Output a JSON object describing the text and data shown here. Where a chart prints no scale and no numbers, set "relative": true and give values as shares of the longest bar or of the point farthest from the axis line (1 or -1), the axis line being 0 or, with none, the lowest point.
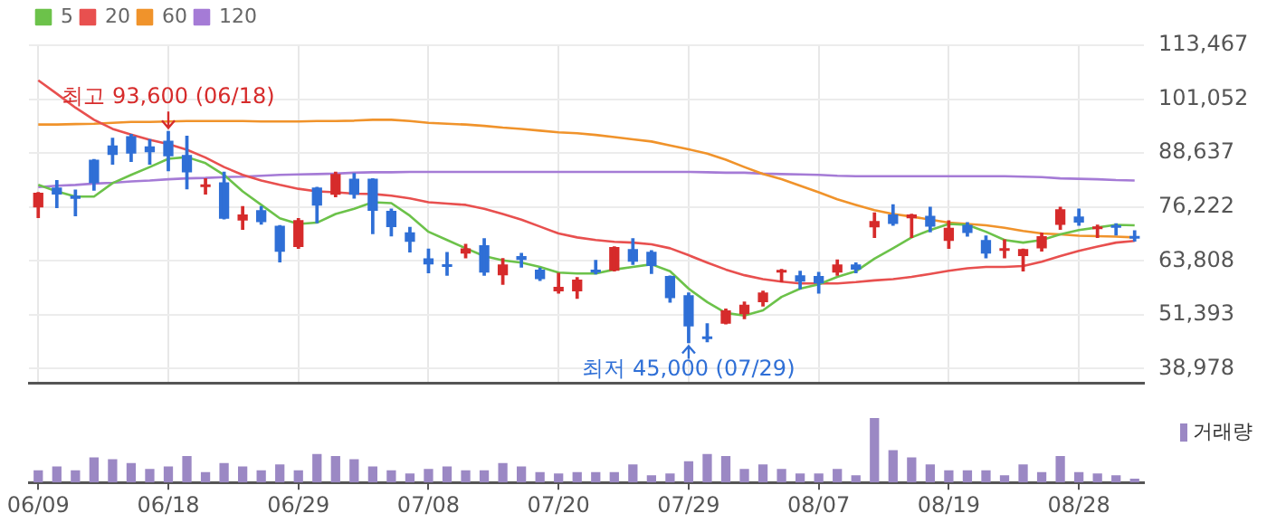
{
  "chart_data": [
    {
      "type": "candlestick",
      "categories": [
        "06/09",
        null,
        null,
        null,
        null,
        null,
        null,
        "06/18",
        null,
        null,
        null,
        null,
        null,
        null,
        "06/29",
        null,
        null,
        null,
        null,
        null,
        null,
        "07/08",
        null,
        null,
        null,
        null,
        null,
        null,
        "07/20",
        null,
        null,
        null,
        null,
        null,
        null,
        "07/29",
        null,
        null,
        null,
        null,
        null,
        null,
        "08/07",
        null,
        null,
        null,
        null,
        null,
        null,
        "08/19",
        null,
        null,
        null,
        null,
        null,
        null,
        "08/28",
        null,
        null,
        null
      ],
      "ohlc": [
        [
          76100,
          79500,
          73800,
          79500
        ],
        [
          80700,
          82300,
          76100,
          79100
        ],
        [
          78800,
          80100,
          74200,
          78100
        ],
        [
          87100,
          87100,
          80100,
          81700
        ],
        [
          90400,
          92000,
          86100,
          88200
        ],
        [
          92500,
          92900,
          86700,
          88500
        ],
        [
          90200,
          91700,
          86100,
          88800
        ],
        [
          91500,
          93600,
          84600,
          87900
        ],
        [
          88200,
          92500,
          80400,
          84200
        ],
        [
          80800,
          82700,
          79200,
          81400
        ],
        [
          81900,
          84200,
          73500,
          73500
        ],
        [
          73100,
          76300,
          71100,
          74500
        ],
        [
          75500,
          76300,
          72300,
          72700
        ],
        [
          71900,
          71900,
          63600,
          65900
        ],
        [
          67000,
          73500,
          66700,
          73200
        ],
        [
          80700,
          80700,
          72600,
          76500
        ],
        [
          79000,
          84200,
          78600,
          83800
        ],
        [
          82700,
          83900,
          78300,
          79000
        ],
        [
          82700,
          82700,
          70100,
          75300
        ],
        [
          75300,
          75700,
          69600,
          71600
        ],
        [
          70400,
          71500,
          65900,
          68200
        ],
        [
          64400,
          66500,
          61100,
          63000
        ],
        [
          62800,
          65700,
          60500,
          62400
        ],
        [
          65500,
          67600,
          64500,
          66700
        ],
        [
          67400,
          68900,
          60500,
          61100
        ],
        [
          60500,
          64300,
          58400,
          63000
        ],
        [
          64900,
          65500,
          62400,
          64000
        ],
        [
          61800,
          62100,
          59300,
          59600
        ],
        [
          56800,
          60900,
          56400,
          57800
        ],
        [
          56800,
          59900,
          55200,
          59500
        ],
        [
          61800,
          63900,
          60800,
          61100
        ],
        [
          61500,
          67000,
          61500,
          67000
        ],
        [
          66500,
          68900,
          63000,
          63600
        ],
        [
          65900,
          66100,
          60900,
          62600
        ],
        [
          60300,
          60300,
          54300,
          55200
        ],
        [
          55900,
          56400,
          45000,
          48700
        ],
        [
          46400,
          49300,
          45200,
          45800
        ],
        [
          49300,
          52700,
          49300,
          52400
        ],
        [
          51500,
          54300,
          50500,
          53700
        ],
        [
          54300,
          56800,
          53400,
          56500
        ],
        [
          61100,
          61800,
          59000,
          61500
        ],
        [
          60500,
          61400,
          57400,
          59000
        ],
        [
          60300,
          61100,
          56400,
          58600
        ],
        [
          61100,
          64000,
          60500,
          63000
        ],
        [
          63000,
          63300,
          61100,
          61800
        ],
        [
          71500,
          74800,
          69200,
          73000
        ],
        [
          74500,
          76700,
          72000,
          72300
        ],
        [
          73600,
          74500,
          69200,
          74500
        ],
        [
          74200,
          76100,
          70500,
          71700
        ],
        [
          68400,
          73000,
          66700,
          71400
        ],
        [
          72100,
          72600,
          69500,
          70200
        ],
        [
          68600,
          69500,
          64500,
          65500
        ],
        [
          66100,
          68600,
          64500,
          66400
        ],
        [
          64900,
          66500,
          61500,
          66500
        ],
        [
          66700,
          70200,
          66100,
          69500
        ],
        [
          72100,
          76100,
          71100,
          75700
        ],
        [
          74000,
          75700,
          72000,
          72600
        ],
        [
          71100,
          72000,
          69200,
          71400
        ],
        [
          72000,
          72300,
          69800,
          71400
        ],
        [
          69200,
          70700,
          68400,
          68900
        ]
      ],
      "colors": [
        "#d62b2b",
        "#2f6fd6",
        "#2f6fd6",
        "#2f6fd6",
        "#2f6fd6",
        "#2f6fd6",
        "#2f6fd6",
        "#2f6fd6",
        "#2f6fd6",
        "#d62b2b",
        "#2f6fd6",
        "#d62b2b",
        "#2f6fd6",
        "#2f6fd6",
        "#d62b2b",
        "#2f6fd6",
        "#d62b2b",
        "#2f6fd6",
        "#2f6fd6",
        "#2f6fd6",
        "#2f6fd6",
        "#2f6fd6",
        "#2f6fd6",
        "#d62b2b",
        "#2f6fd6",
        "#d62b2b",
        "#2f6fd6",
        "#2f6fd6",
        "#d62b2b",
        "#d62b2b",
        "#2f6fd6",
        "#d62b2b",
        "#2f6fd6",
        "#2f6fd6",
        "#2f6fd6",
        "#2f6fd6",
        "#2f6fd6",
        "#d62b2b",
        "#d62b2b",
        "#d62b2b",
        "#d62b2b",
        "#2f6fd6",
        "#2f6fd6",
        "#d62b2b",
        "#2f6fd6",
        "#d62b2b",
        "#2f6fd6",
        "#d62b2b",
        "#2f6fd6",
        "#d62b2b",
        "#2f6fd6",
        "#2f6fd6",
        "#d62b2b",
        "#d62b2b",
        "#d62b2b",
        "#d62b2b",
        "#2f6fd6",
        "#d62b2b",
        "#2f6fd6",
        "#2f6fd6"
      ],
      "series": [
        {
          "type": "line",
          "name": "5",
          "color": "#6cc24a",
          "values": [
            81300,
            79800,
            78600,
            78600,
            81700,
            83600,
            85400,
            87300,
            87700,
            86300,
            83600,
            79800,
            76700,
            73600,
            72300,
            72600,
            74600,
            75800,
            77300,
            77100,
            74200,
            70500,
            68600,
            66700,
            64900,
            63900,
            63400,
            62400,
            61100,
            60900,
            60900,
            61800,
            62400,
            63000,
            61400,
            57400,
            54300,
            51800,
            51200,
            52400,
            55500,
            57400,
            58400,
            60100,
            61400,
            64300,
            66700,
            69200,
            70900,
            72300,
            72100,
            70500,
            68600,
            68000,
            68600,
            69900,
            70900,
            71500,
            72100,
            72000
          ]
        },
        {
          "type": "line",
          "name": "20",
          "color": "#e8504f",
          "values": [
            105400,
            102300,
            99100,
            96300,
            94200,
            92900,
            91700,
            90700,
            89400,
            87600,
            85400,
            83600,
            82300,
            81300,
            80400,
            79800,
            79600,
            79300,
            79200,
            78800,
            78200,
            77300,
            77000,
            76700,
            75800,
            74600,
            73300,
            71700,
            70100,
            69200,
            68600,
            68200,
            68000,
            67600,
            66700,
            65100,
            63400,
            61800,
            60500,
            59600,
            59000,
            58600,
            58600,
            58600,
            58900,
            59300,
            59600,
            60100,
            60800,
            61500,
            62100,
            62400,
            62400,
            62600,
            63600,
            64900,
            66100,
            67100,
            68000,
            68400
          ]
        },
        {
          "type": "line",
          "name": "60",
          "color": "#f0932b",
          "values": [
            95200,
            95200,
            95300,
            95400,
            95600,
            95800,
            95800,
            95900,
            96000,
            96000,
            96000,
            96000,
            95900,
            95900,
            95900,
            96000,
            96000,
            96100,
            96300,
            96300,
            96000,
            95600,
            95400,
            95200,
            94900,
            94500,
            94200,
            93800,
            93400,
            93200,
            92800,
            92300,
            91800,
            91300,
            90400,
            89500,
            88500,
            87100,
            85400,
            83800,
            82600,
            81100,
            79600,
            78000,
            76700,
            75500,
            74600,
            74000,
            73300,
            72600,
            72300,
            72000,
            71400,
            70700,
            70100,
            69900,
            69600,
            69500,
            69400,
            69200
          ]
        },
        {
          "type": "line",
          "name": "120",
          "color": "#a57bd6",
          "values": [
            80800,
            81100,
            81300,
            81600,
            81800,
            82100,
            82300,
            82600,
            82800,
            82900,
            83100,
            83200,
            83400,
            83600,
            83700,
            83800,
            83900,
            84100,
            84200,
            84200,
            84300,
            84300,
            84300,
            84300,
            84300,
            84300,
            84300,
            84300,
            84300,
            84300,
            84300,
            84300,
            84300,
            84300,
            84300,
            84300,
            84200,
            84100,
            84100,
            83900,
            83800,
            83700,
            83600,
            83400,
            83300,
            83300,
            83300,
            83300,
            83300,
            83300,
            83300,
            83300,
            83300,
            83200,
            83100,
            82800,
            82700,
            82600,
            82400,
            82300
          ]
        }
      ],
      "ylim": [
        35600,
        113467
      ],
      "yticks": [
        {
          "value": 38978,
          "label": "38,978"
        },
        {
          "value": 51393,
          "label": "51,393"
        },
        {
          "value": 63808,
          "label": "63,808"
        },
        {
          "value": 76222,
          "label": "76,222"
        },
        {
          "value": 88637,
          "label": "88,637"
        },
        {
          "value": 101052,
          "label": "101,052"
        },
        {
          "value": 113467,
          "label": "113,467"
        }
      ],
      "grid": true,
      "legend": "top left",
      "tick_labels": "y",
      "marker": "none",
      "annotations": [
        {
          "text": "최고 93,600 (06/18)",
          "x": "06/18",
          "y": 93600
        },
        {
          "text": "최저 45,000 (07/29)",
          "x": "07/29",
          "y": 45000
        }
      ]
    },
    {
      "type": "bar",
      "categories": [
        "06/09",
        null,
        null,
        null,
        null,
        null,
        null,
        "06/18",
        null,
        null,
        null,
        null,
        null,
        null,
        "06/29",
        null,
        null,
        null,
        null,
        null,
        null,
        "07/08",
        null,
        null,
        null,
        null,
        null,
        null,
        "07/20",
        null,
        null,
        null,
        null,
        null,
        null,
        "07/29",
        null,
        null,
        null,
        null,
        null,
        null,
        "08/07",
        null,
        null,
        null,
        null,
        null,
        null,
        "08/19",
        null,
        null,
        null,
        null,
        null,
        null,
        "08/28",
        null,
        null,
        null
      ],
      "series": [
        {
          "name": "거래량",
          "color": "#9b88c4",
          "values": [
            0.19,
            0.25,
            0.19,
            0.39,
            0.36,
            0.3,
            0.21,
            0.25,
            0.41,
            0.16,
            0.3,
            0.25,
            0.19,
            0.28,
            0.19,
            0.44,
            0.41,
            0.36,
            0.25,
            0.19,
            0.14,
            0.21,
            0.25,
            0.19,
            0.19,
            0.3,
            0.25,
            0.16,
            0.14,
            0.16,
            0.16,
            0.16,
            0.28,
            0.11,
            0.14,
            0.33,
            0.44,
            0.41,
            0.21,
            0.28,
            0.21,
            0.14,
            0.14,
            0.21,
            0.11,
            1,
            0.5,
            0.39,
            0.28,
            0.19,
            0.19,
            0.19,
            0.11,
            0.28,
            0.16,
            0.41,
            0.16,
            0.14,
            0.11,
            0.06
          ]
        }
      ],
      "relative": true,
      "tick_labels": "x",
      "legend": "top right"
    }
  ]
}
